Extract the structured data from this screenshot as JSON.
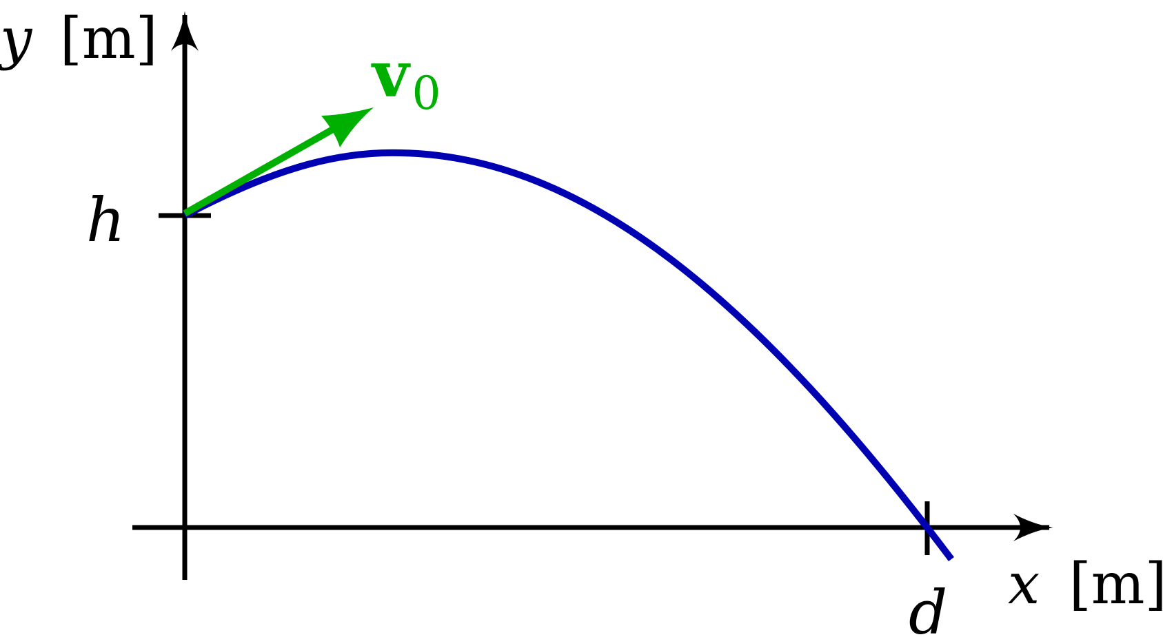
{
  "colors": {
    "axis": "#000000",
    "trajectory": "#0000b3",
    "velocity": "#00b000",
    "background": "#ffffff"
  },
  "axes": {
    "y_label_var": "y",
    "y_label_unit": "[m]",
    "x_label_var": "x",
    "x_label_unit": "[m]"
  },
  "ticks": {
    "height_label": "h",
    "distance_label": "d"
  },
  "velocity": {
    "symbol": "v",
    "subscript": "0"
  }
}
